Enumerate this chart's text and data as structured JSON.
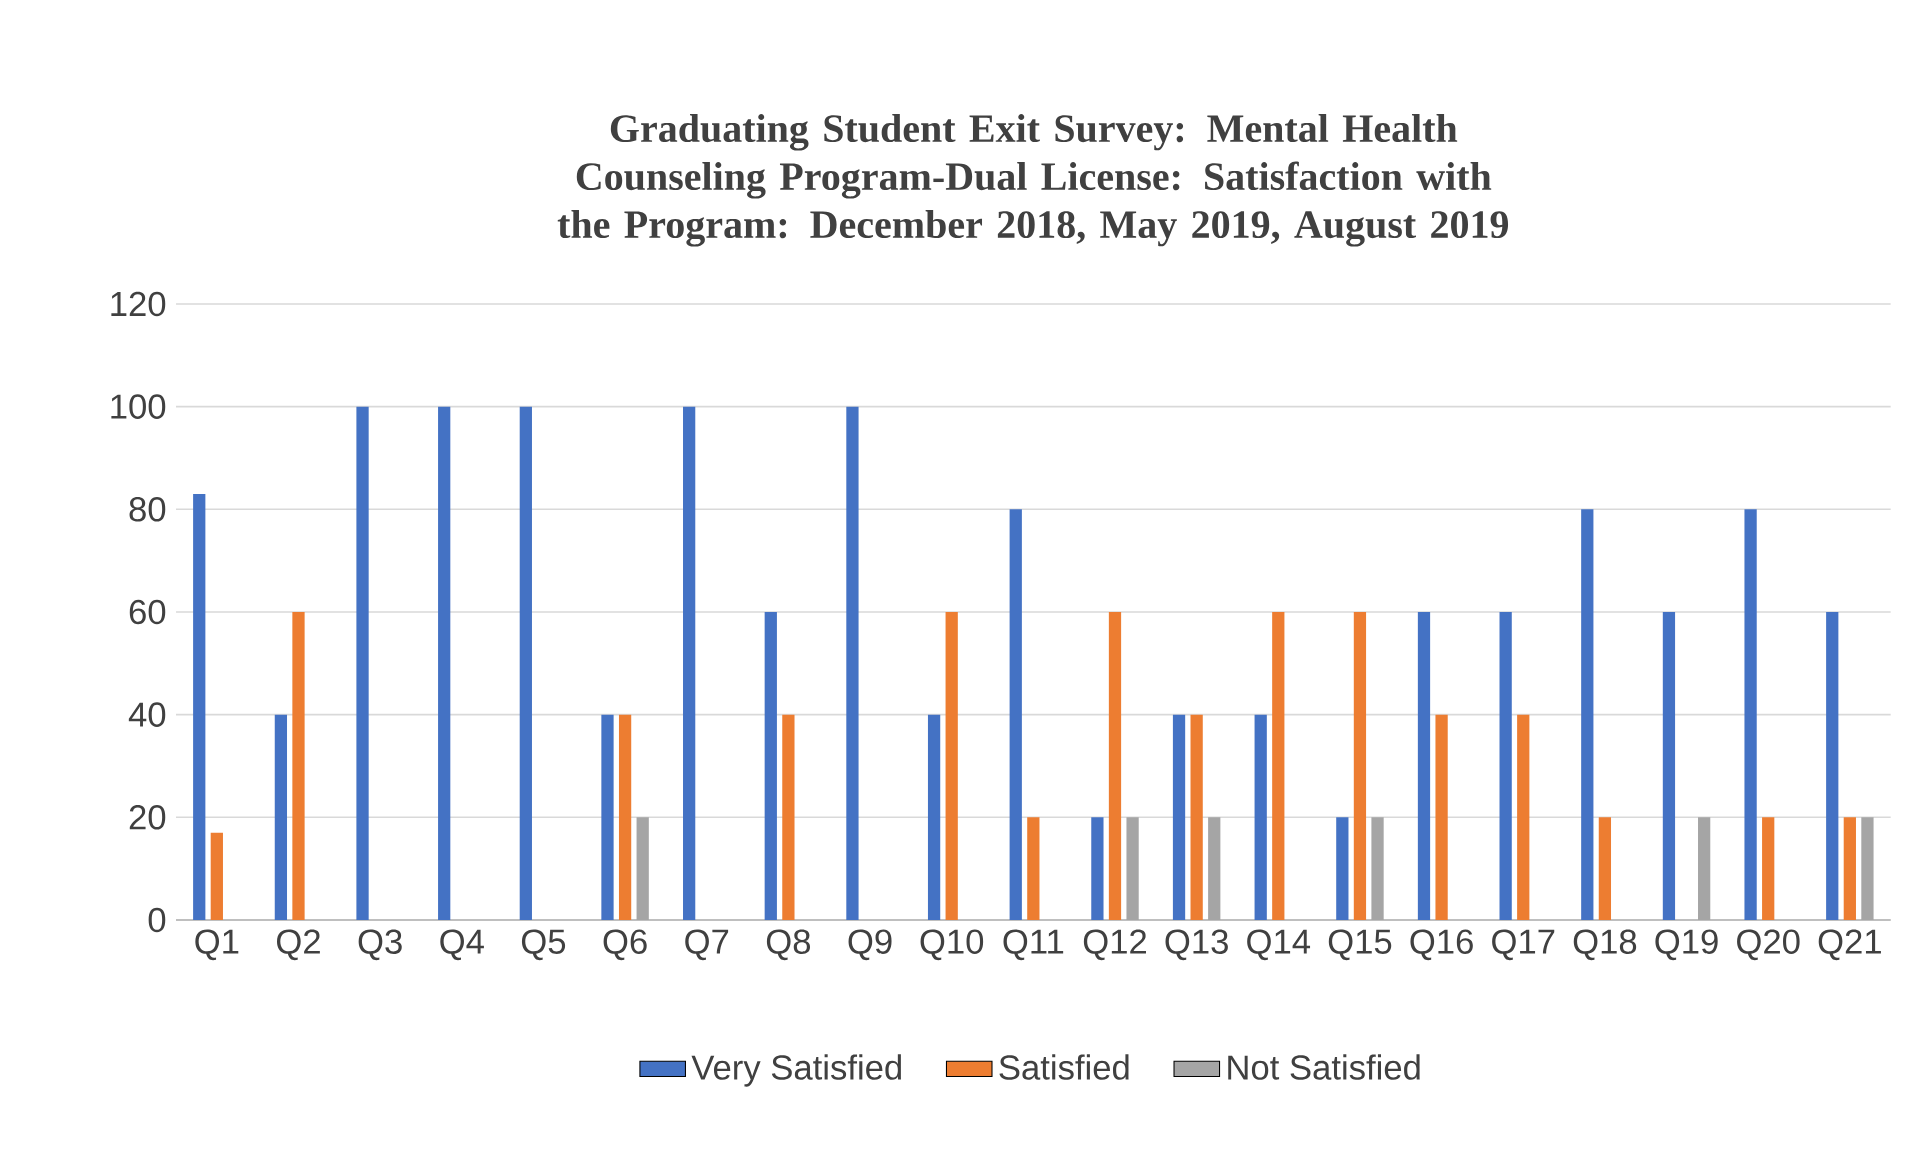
{
  "chart_data": {
    "type": "bar",
    "title": "Graduating Student Exit Survey: Mental Health Counseling Program-Dual License: Satisfaction with the Program: December 2018, May 2019, August 2019",
    "categories": [
      "Q1",
      "Q2",
      "Q3",
      "Q4",
      "Q5",
      "Q6",
      "Q7",
      "Q8",
      "Q9",
      "Q10",
      "Q11",
      "Q12",
      "Q13",
      "Q14",
      "Q15",
      "Q16",
      "Q17",
      "Q18",
      "Q19",
      "Q20",
      "Q21"
    ],
    "series": [
      {
        "name": "Very Satisfied",
        "color": "#4472c4",
        "values": [
          83,
          40,
          100,
          100,
          100,
          40,
          100,
          60,
          100,
          40,
          80,
          20,
          40,
          40,
          20,
          60,
          60,
          80,
          60,
          80,
          60
        ]
      },
      {
        "name": "Satisfied",
        "color": "#ed7d31",
        "values": [
          17,
          60,
          0,
          0,
          0,
          40,
          0,
          40,
          0,
          60,
          20,
          60,
          40,
          60,
          60,
          40,
          40,
          20,
          0,
          20,
          20
        ]
      },
      {
        "name": "Not Satisfied",
        "color": "#a5a5a5",
        "values": [
          0,
          0,
          0,
          0,
          0,
          20,
          0,
          0,
          0,
          0,
          0,
          20,
          20,
          0,
          20,
          0,
          0,
          0,
          20,
          0,
          20
        ]
      }
    ],
    "ylim": [
      0,
      120
    ],
    "yticks": [
      0,
      20,
      40,
      60,
      80,
      100,
      120
    ],
    "grid": "y",
    "legend": "bottom"
  }
}
